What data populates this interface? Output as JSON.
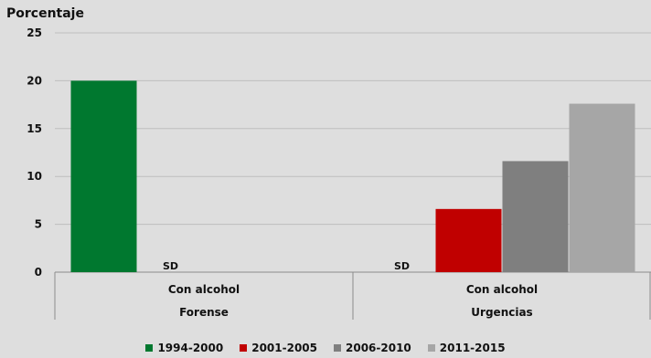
{
  "chart_data": {
    "type": "bar",
    "ylabel": "Porcentaje",
    "ylim": [
      0,
      25
    ],
    "yticks": [
      0,
      5,
      10,
      15,
      20,
      25
    ],
    "grid": true,
    "legend_position": "bottom",
    "groups": [
      {
        "category": "Con alcohol",
        "group": "Forense"
      },
      {
        "category": "Con alcohol",
        "group": "Urgencias"
      }
    ],
    "series": [
      {
        "name": "1994-2000",
        "color": "#00782f",
        "values": [
          20,
          null
        ],
        "missing_label": [
          "",
          "SD"
        ]
      },
      {
        "name": "2001-2005",
        "color": "#c00000",
        "values": [
          null,
          6.6
        ],
        "missing_label": [
          "SD",
          ""
        ]
      },
      {
        "name": "2006-2010",
        "color": "#7f7f7f",
        "values": [
          null,
          11.6
        ],
        "missing_label": [
          "",
          ""
        ]
      },
      {
        "name": "2011-2015",
        "color": "#a6a6a6",
        "values": [
          null,
          17.6
        ],
        "missing_label": [
          "",
          ""
        ]
      }
    ]
  }
}
